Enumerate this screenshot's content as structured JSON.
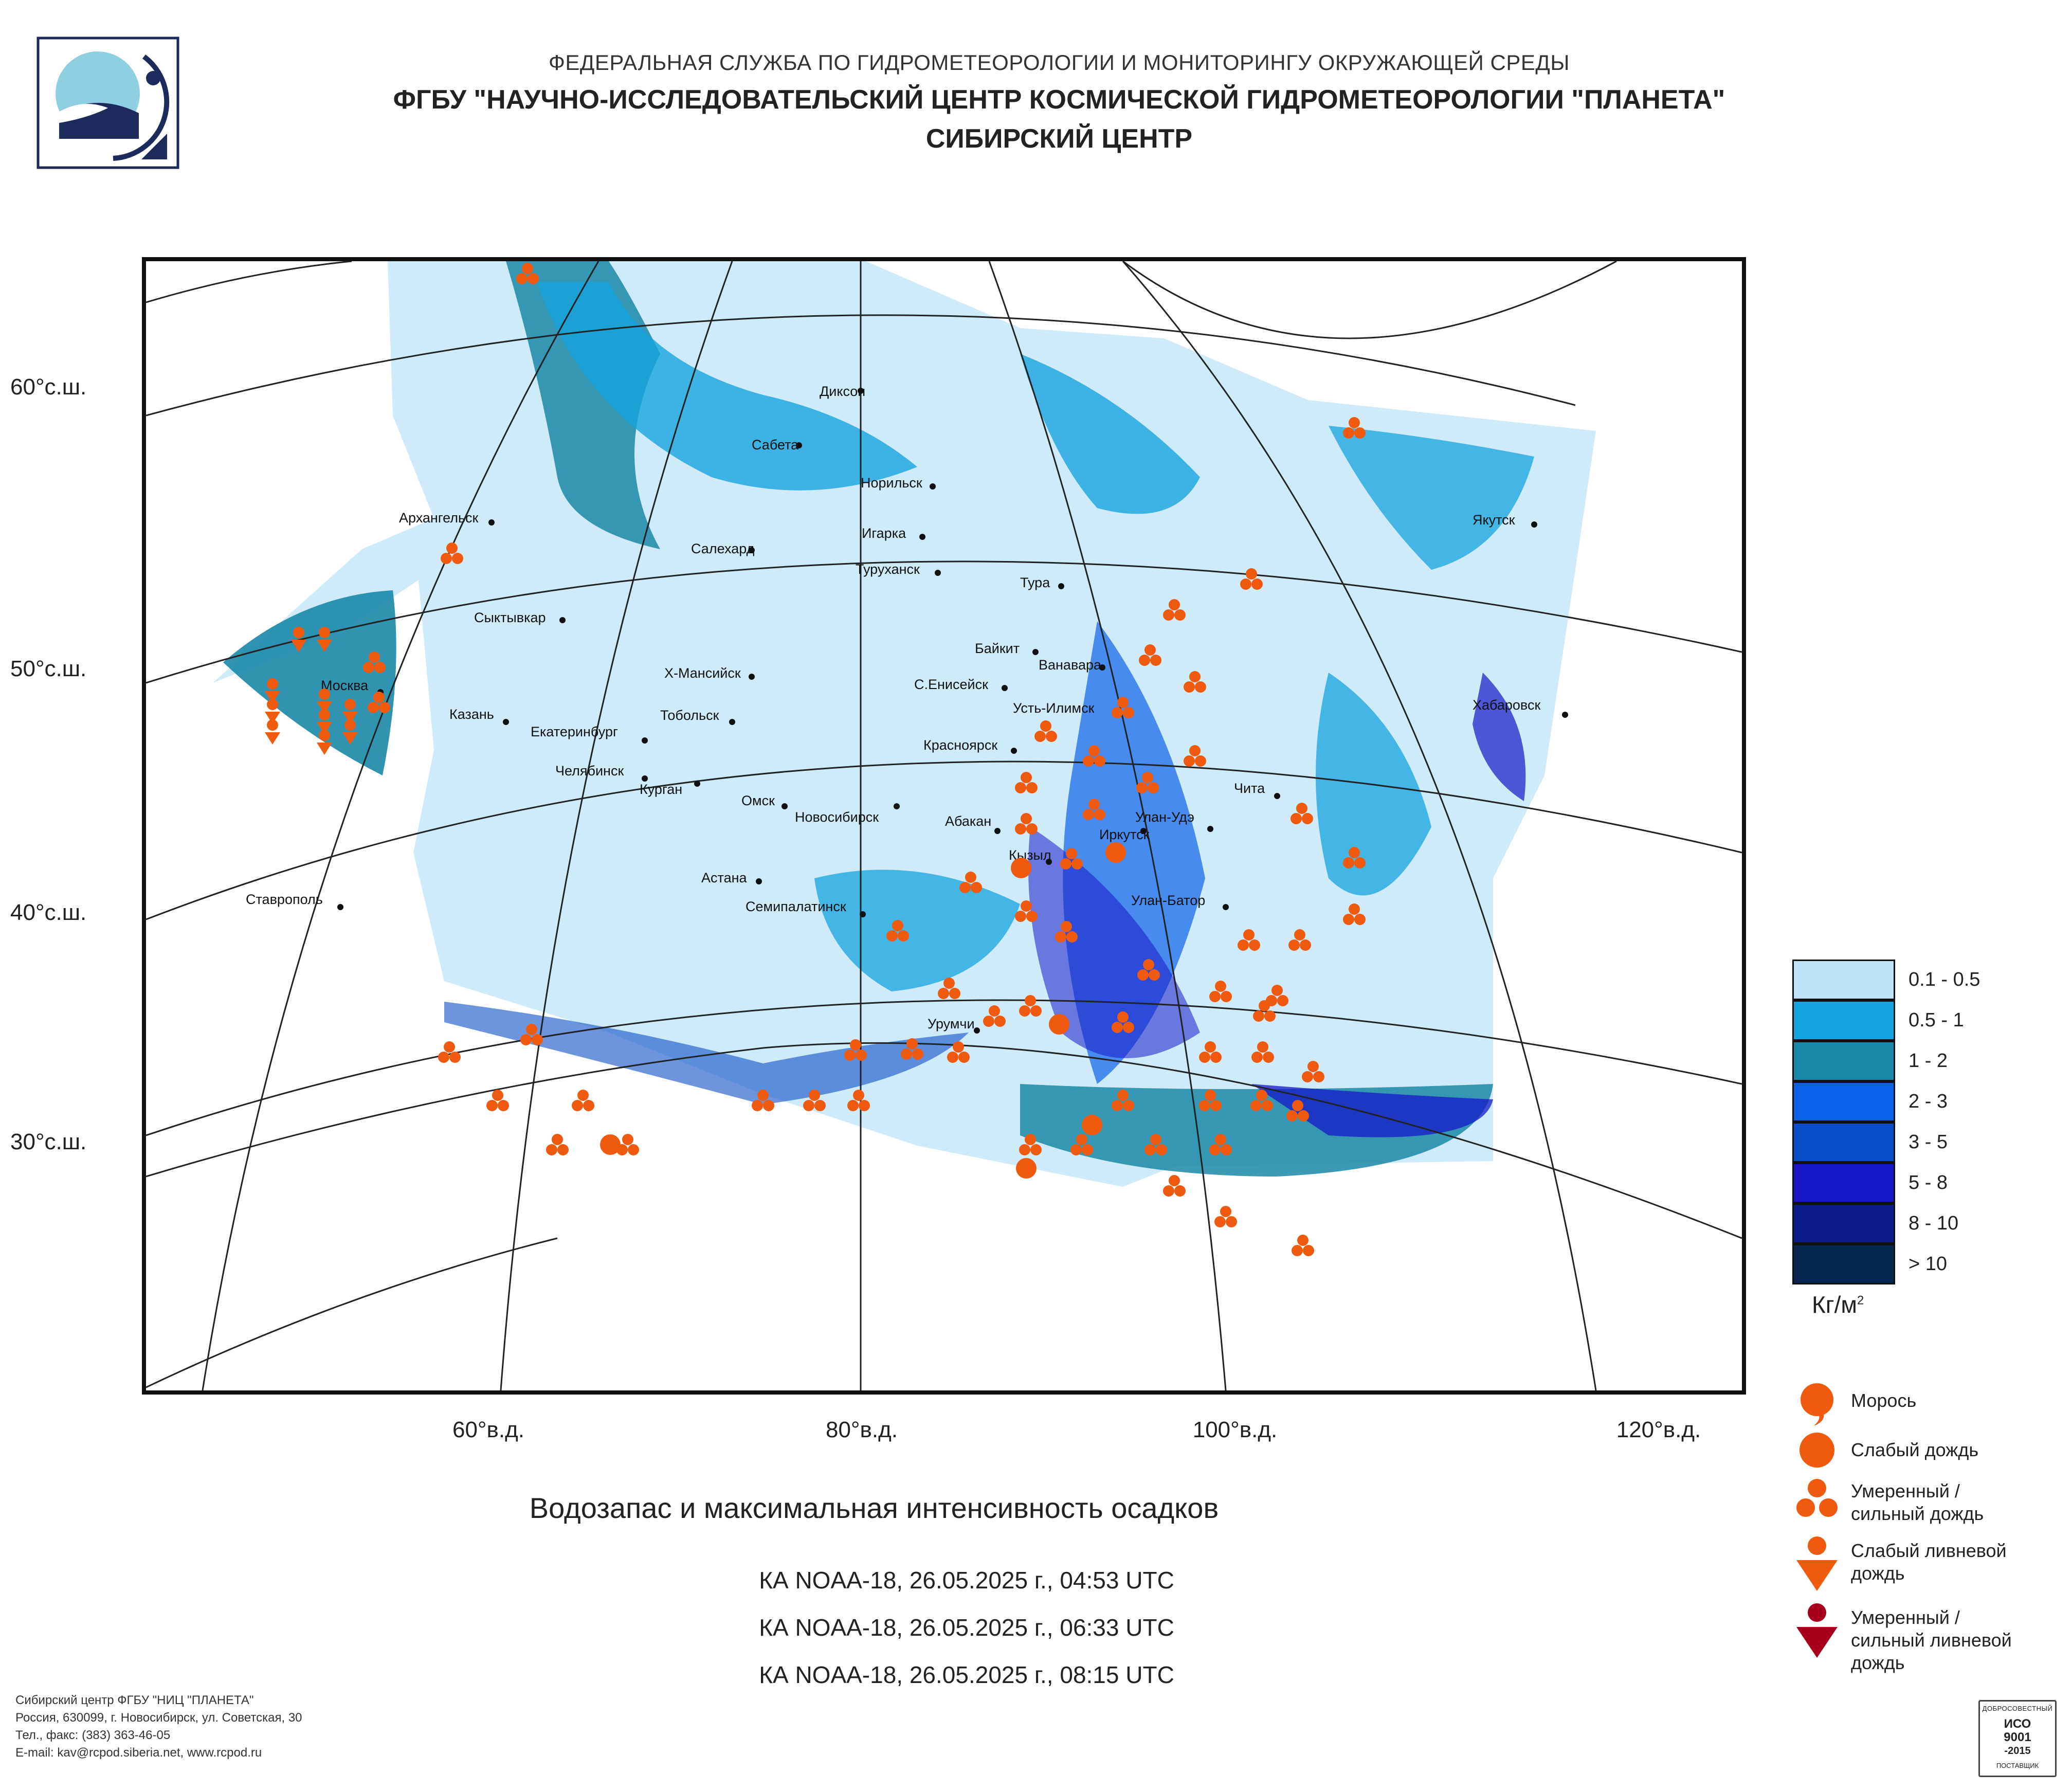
{
  "header": {
    "line1": "ФЕДЕРАЛЬНАЯ СЛУЖБА ПО ГИДРОМЕТЕОРОЛОГИИ И МОНИТОРИНГУ ОКРУЖАЮЩЕЙ СРЕДЫ",
    "line2": "ФГБУ \"НАУЧНО-ИССЛЕДОВАТЕЛЬСКИЙ ЦЕНТР КОСМИЧЕСКОЙ ГИДРОМЕТЕОРОЛОГИИ \"ПЛАНЕТА\"",
    "line3": "СИБИРСКИЙ ЦЕНТР",
    "logo_icon": "planeta-logo-icon"
  },
  "map": {
    "lat_labels": [
      "60°с.ш.",
      "50°с.ш.",
      "40°с.ш.",
      "30°с.ш."
    ],
    "lon_labels": [
      "60°в.д.",
      "80°в.д.",
      "100°в.д.",
      "120°в.д."
    ],
    "cities": [
      "Диксон",
      "Сабета",
      "Норильск",
      "Игарка",
      "Салехард",
      "Туруханск",
      "Якутск",
      "Архангельск",
      "Тура",
      "Сыктывкар",
      "Байкит",
      "Ванавара",
      "Х-Мансийск",
      "С.Енисейск",
      "Усть-Илимск",
      "Москва",
      "Казань",
      "Тобольск",
      "Хабаровск",
      "Екатеринбург",
      "Красноярск",
      "Челябинск",
      "Курган",
      "Чита",
      "Омск",
      "Новосибирск",
      "Абакан",
      "Улан-Удэ",
      "Иркутск",
      "Кызыл",
      "Астана",
      "Ставрополь",
      "Семипалатинск",
      "Улан-Батор",
      "Урумчи"
    ]
  },
  "caption": {
    "title": "Водозапас и максимальная интенсивность осадков",
    "passes": [
      "КА NOAA-18, 26.05.2025 г., 04:53 UTC",
      "КА NOAA-18, 26.05.2025 г., 06:33 UTC",
      "КА NOAA-18, 26.05.2025 г., 08:15 UTC"
    ]
  },
  "legend": {
    "units_main": "Кг/м",
    "units_sup": "2",
    "classes": [
      {
        "label": "0.1 - 0.5",
        "color": "#bfe3f7"
      },
      {
        "label": "0.5 - 1",
        "color": "#16a4e0"
      },
      {
        "label": "1 - 2",
        "color": "#1a88a8"
      },
      {
        "label": "2 - 3",
        "color": "#0b62e8"
      },
      {
        "label": "3 - 5",
        "color": "#0b4fc8"
      },
      {
        "label": "5 - 8",
        "color": "#1717c8"
      },
      {
        "label": "8 - 10",
        "color": "#0c1a8a"
      },
      {
        "label": "> 10",
        "color": "#06254f"
      }
    ],
    "precip_types": [
      {
        "label": "Морось",
        "icon": "drizzle-icon",
        "color": "#f05a0f"
      },
      {
        "label": "Слабый дождь",
        "icon": "light-rain-icon",
        "color": "#f05a0f"
      },
      {
        "label": "Умеренный / сильный дождь",
        "icon": "moderate-rain-icon",
        "color": "#f05a0f"
      },
      {
        "label": "Слабый ливневой дождь",
        "icon": "light-shower-icon",
        "color": "#f05a0f"
      },
      {
        "label": "Умеренный / сильный ливневой дождь",
        "icon": "heavy-shower-icon",
        "color": "#a8001c"
      }
    ]
  },
  "footer": {
    "org": "Сибирский центр ФГБУ \"НИЦ \"ПЛАНЕТА\"",
    "address": "Россия, 630099, г. Новосибирск, ул. Советская, 30",
    "phone": "Тел., факс: (383) 363-46-05",
    "email": "E-mail: kav@rcpod.siberia.net, www.rcpod.ru"
  },
  "iso_badge": {
    "top": "ДОБРОСОВЕСТНЫЙ",
    "mid1": "ИСО",
    "mid2": "9001",
    "mid3": "-2015",
    "bottom": "ПОСТАВЩИК"
  }
}
